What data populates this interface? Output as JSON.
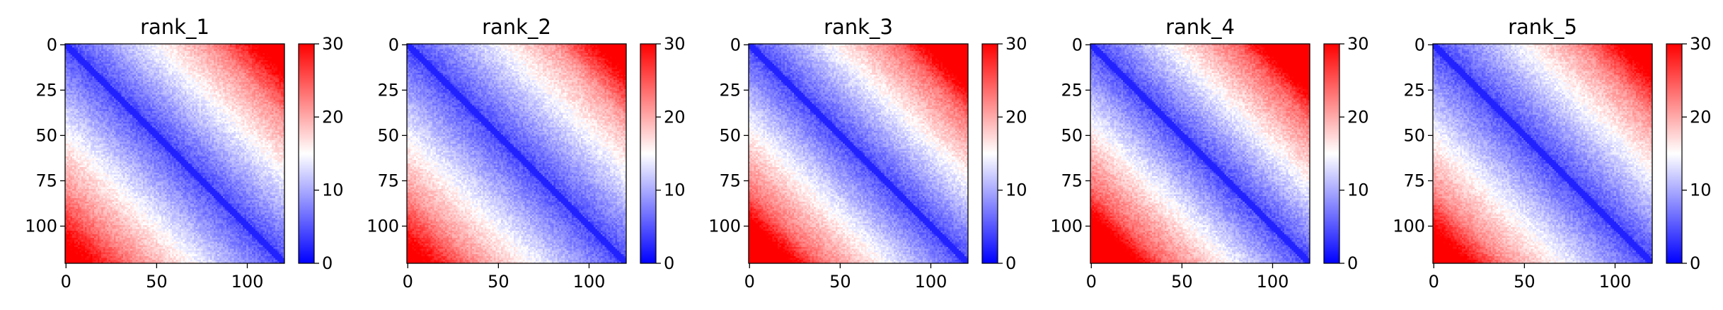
{
  "chart_data": [
    {
      "type": "heatmap",
      "title": "rank_1",
      "size": 121,
      "x_ticks": [
        0,
        50,
        100
      ],
      "y_ticks": [
        0,
        25,
        50,
        75,
        100
      ],
      "colorbar": {
        "min": 0,
        "max": 30,
        "ticks": [
          0,
          10,
          20,
          30
        ]
      },
      "colormap": [
        "#0000ff",
        "#ffffff",
        "#ff0000"
      ],
      "pattern": {
        "intercept": 4,
        "slope": 0.22,
        "upper_corner_boost": 6,
        "lower_corner_boost": 4,
        "noise": 1.5
      }
    },
    {
      "type": "heatmap",
      "title": "rank_2",
      "size": 121,
      "x_ticks": [
        0,
        50,
        100
      ],
      "y_ticks": [
        0,
        25,
        50,
        75,
        100
      ],
      "colorbar": {
        "min": 0,
        "max": 30,
        "ticks": [
          0,
          10,
          20,
          30
        ]
      },
      "colormap": [
        "#0000ff",
        "#ffffff",
        "#ff0000"
      ],
      "pattern": {
        "intercept": 4,
        "slope": 0.21,
        "upper_corner_boost": 8,
        "lower_corner_boost": 5,
        "noise": 1.5
      }
    },
    {
      "type": "heatmap",
      "title": "rank_3",
      "size": 121,
      "x_ticks": [
        0,
        50,
        100
      ],
      "y_ticks": [
        0,
        25,
        50,
        75,
        100
      ],
      "colorbar": {
        "min": 0,
        "max": 30,
        "ticks": [
          0,
          10,
          20,
          30
        ]
      },
      "colormap": [
        "#0000ff",
        "#ffffff",
        "#ff0000"
      ],
      "pattern": {
        "intercept": 4,
        "slope": 0.24,
        "upper_corner_boost": 9,
        "lower_corner_boost": 9,
        "noise": 1.5
      }
    },
    {
      "type": "heatmap",
      "title": "rank_4",
      "size": 121,
      "x_ticks": [
        0,
        50,
        100
      ],
      "y_ticks": [
        0,
        25,
        50,
        75,
        100
      ],
      "colorbar": {
        "min": 0,
        "max": 30,
        "ticks": [
          0,
          10,
          20,
          30
        ]
      },
      "colormap": [
        "#0000ff",
        "#ffffff",
        "#ff0000"
      ],
      "pattern": {
        "intercept": 4,
        "slope": 0.25,
        "upper_corner_boost": 10,
        "lower_corner_boost": 10,
        "noise": 1.6
      }
    },
    {
      "type": "heatmap",
      "title": "rank_5",
      "size": 121,
      "x_ticks": [
        0,
        50,
        100
      ],
      "y_ticks": [
        0,
        25,
        50,
        75,
        100
      ],
      "colorbar": {
        "min": 0,
        "max": 30,
        "ticks": [
          0,
          10,
          20,
          30
        ]
      },
      "colormap": [
        "#0000ff",
        "#ffffff",
        "#ff0000"
      ],
      "pattern": {
        "intercept": 4,
        "slope": 0.22,
        "upper_corner_boost": 7,
        "lower_corner_boost": 8,
        "noise": 1.5
      }
    }
  ]
}
